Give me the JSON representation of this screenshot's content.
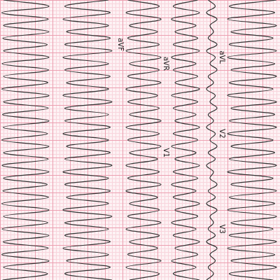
{
  "chart_data": {
    "type": "line",
    "orientation": "vertical",
    "grid": true,
    "tick_labels": false,
    "xlim": [
      0,
      80
    ],
    "xticks": [
      0,
      5,
      10,
      15,
      20,
      25,
      30,
      35,
      40,
      45,
      50,
      55,
      60,
      65,
      70,
      75,
      80
    ],
    "categories": [
      null,
      null,
      null,
      null,
      null,
      null,
      null,
      null,
      null,
      null,
      null,
      null,
      null,
      null,
      null,
      null,
      null,
      null,
      null,
      null,
      null,
      null,
      null,
      null,
      null,
      null,
      null,
      null,
      null,
      null,
      null,
      null,
      null,
      null,
      null,
      null,
      null,
      null,
      null,
      null,
      null,
      null,
      null,
      null,
      null
    ],
    "series": [
      {
        "color": "#333333",
        "values": [
          1,
          14,
          0.5,
          13.8,
          1,
          14,
          0.8,
          13.5,
          1,
          14,
          0.6,
          13.9,
          1,
          13.7,
          0.5,
          14,
          1,
          13.8,
          0.7,
          14,
          0.9,
          13.6,
          0.5,
          14,
          1,
          13.8,
          0.6,
          14,
          1,
          13.5,
          0.8,
          13.9,
          0.5,
          14,
          1,
          13.7,
          0.6,
          14,
          0.9,
          13.8,
          0.5,
          14,
          1,
          13.6,
          0.7
        ]
      },
      {
        "color": "#333333",
        "values": [
          31,
          18.5,
          31.5,
          18,
          31,
          19,
          31.5,
          18.5,
          32,
          18,
          31,
          18.5,
          31.5,
          19,
          31,
          18,
          32,
          18.5,
          31,
          18.5,
          31.5,
          18,
          31,
          19,
          31.5,
          18.5,
          32,
          18,
          31,
          18.5,
          31.5,
          19,
          31,
          18,
          32,
          18.5,
          31,
          18.5,
          31.5,
          18,
          31,
          19,
          31.5,
          18.5,
          32
        ]
      },
      {
        "color": "#333333",
        "values": [
          36.5,
          45.5,
          36,
          46,
          37,
          45,
          36.5,
          45.5,
          36,
          46,
          37,
          45.5,
          36.5,
          46,
          36,
          45,
          36.5,
          45.5,
          37,
          46,
          36,
          45.5,
          36.5,
          46,
          37,
          45,
          36,
          45.5,
          36.5,
          46,
          36,
          45,
          37,
          45.5,
          36.5,
          46,
          36,
          45.5,
          37,
          45,
          36.5,
          46,
          36,
          45.5,
          37
        ]
      },
      {
        "color": "#333333",
        "values": [
          56.5,
          49.5,
          57,
          49,
          56,
          50,
          56.5,
          49.5,
          57,
          49,
          56,
          49.5,
          56.5,
          50,
          57,
          49,
          56.5,
          49.5,
          56,
          50,
          57,
          49.5,
          56.5,
          49,
          56,
          50,
          57,
          49.5,
          56.5,
          49,
          56,
          49.5,
          57,
          50,
          56.5,
          49,
          56,
          49.5,
          57,
          50,
          56.5,
          49,
          56,
          49.5,
          57
        ]
      },
      {
        "color": "#333333",
        "values": [
          59.5,
          61.5,
          59,
          62,
          60,
          61,
          59.5,
          62,
          59,
          61.5,
          60,
          62,
          59.5,
          61,
          59,
          61.5,
          60,
          62,
          59.5,
          61,
          59,
          61.5,
          60,
          62,
          59.5,
          61.5,
          59,
          61,
          60,
          62,
          59.5,
          61.5,
          59,
          62,
          60,
          61,
          59.5,
          61.5,
          59,
          62,
          60,
          61.5,
          59.5,
          61,
          59
        ]
      },
      {
        "color": "#333333",
        "values": [
          79,
          65.5,
          78.5,
          65,
          79,
          66,
          78,
          65.5,
          79,
          65,
          78.5,
          66,
          79,
          65.5,
          78,
          65,
          79,
          66,
          78.5,
          65.5,
          79,
          65,
          78,
          66,
          78.5,
          65.5,
          79,
          65,
          78,
          66,
          79,
          65.5,
          78.5,
          65,
          79,
          66,
          78,
          65.5,
          79,
          65,
          78.5,
          66,
          79,
          65.5,
          78
        ]
      }
    ],
    "annotations": [
      {
        "text": "aVF",
        "series": 2,
        "index": 7
      },
      {
        "text": "aVR",
        "series": 3,
        "index": 10
      },
      {
        "text": "V1",
        "series": 3,
        "index": 24
      },
      {
        "text": "aVL",
        "series": 5,
        "index": 9
      },
      {
        "text": "V2",
        "series": 5,
        "index": 21
      },
      {
        "text": "V3",
        "series": 5,
        "index": 36
      }
    ]
  }
}
